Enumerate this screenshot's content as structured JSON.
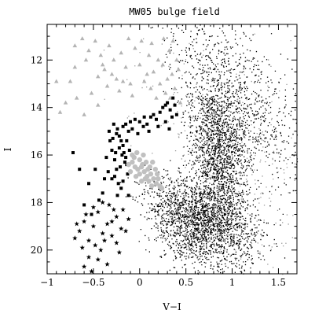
{
  "chart_data": {
    "type": "scatter",
    "title": "MW05 bulge field",
    "xlabel": "V−I",
    "ylabel": "I",
    "xlim": [
      -1.0,
      1.7
    ],
    "ylim": [
      21.0,
      10.5
    ],
    "y_inverted": true,
    "grid": false,
    "x_ticks": [
      {
        "value": -1,
        "label": "−1"
      },
      {
        "value": -0.5,
        "label": "−0.5"
      },
      {
        "value": 0,
        "label": "0"
      },
      {
        "value": 0.5,
        "label": "0.5"
      },
      {
        "value": 1,
        "label": "1"
      },
      {
        "value": 1.5,
        "label": "1.5"
      }
    ],
    "y_ticks": [
      {
        "value": 12,
        "label": "12"
      },
      {
        "value": 14,
        "label": "14"
      },
      {
        "value": 16,
        "label": "16"
      },
      {
        "value": 18,
        "label": "18"
      },
      {
        "value": 20,
        "label": "20"
      }
    ],
    "series": [
      {
        "marker": "triangle",
        "color": "#b4b4b4",
        "points": [
          [
            -0.62,
            11.1
          ],
          [
            -0.55,
            11.6
          ],
          [
            -0.48,
            11.2
          ],
          [
            -0.42,
            11.8
          ],
          [
            -0.38,
            12.4
          ],
          [
            -0.33,
            11.4
          ],
          [
            -0.28,
            12.0
          ],
          [
            -0.25,
            12.8
          ],
          [
            -0.2,
            11.7
          ],
          [
            -0.15,
            12.3
          ],
          [
            -0.1,
            13.0
          ],
          [
            -0.05,
            11.5
          ],
          [
            0.0,
            12.2
          ],
          [
            0.05,
            12.9
          ],
          [
            0.1,
            11.8
          ],
          [
            0.12,
            13.2
          ],
          [
            0.15,
            12.5
          ],
          [
            0.18,
            13.6
          ],
          [
            0.2,
            12.0
          ],
          [
            0.22,
            13.0
          ],
          [
            0.25,
            12.2
          ],
          [
            0.28,
            13.4
          ],
          [
            0.3,
            12.8
          ],
          [
            0.32,
            11.6
          ],
          [
            0.35,
            12.6
          ],
          [
            0.38,
            13.2
          ],
          [
            0.4,
            12.0
          ],
          [
            0.42,
            12.4
          ],
          [
            -0.7,
            12.3
          ],
          [
            -0.75,
            12.9
          ],
          [
            -0.68,
            13.6
          ],
          [
            -0.8,
            13.8
          ],
          [
            -0.86,
            14.2
          ],
          [
            -0.6,
            14.3
          ],
          [
            -0.52,
            13.4
          ],
          [
            -0.45,
            13.9
          ],
          [
            -0.35,
            13.1
          ],
          [
            -0.3,
            12.6
          ],
          [
            -0.4,
            12.2
          ],
          [
            -0.45,
            12.7
          ],
          [
            -0.9,
            12.9
          ],
          [
            -0.7,
            11.4
          ],
          [
            -0.58,
            12.0
          ],
          [
            -0.18,
            12.9
          ],
          [
            0.02,
            11.2
          ],
          [
            0.08,
            12.6
          ],
          [
            0.13,
            11.3
          ],
          [
            0.26,
            11.1
          ],
          [
            0.36,
            11.2
          ],
          [
            0.44,
            13.8
          ],
          [
            0.33,
            13.6
          ],
          [
            -0.08,
            13.5
          ],
          [
            -0.22,
            13.3
          ],
          [
            -0.12,
            11.1
          ]
        ]
      },
      {
        "marker": "square",
        "color": "#000000",
        "points": [
          [
            -0.28,
            14.7
          ],
          [
            -0.24,
            14.9
          ],
          [
            -0.22,
            15.2
          ],
          [
            -0.2,
            15.4
          ],
          [
            -0.18,
            15.6
          ],
          [
            -0.17,
            15.9
          ],
          [
            -0.15,
            16.1
          ],
          [
            -0.14,
            16.4
          ],
          [
            -0.13,
            16.8
          ],
          [
            -0.18,
            17.1
          ],
          [
            -0.2,
            17.4
          ],
          [
            -0.23,
            17.2
          ],
          [
            -0.25,
            16.6
          ],
          [
            -0.27,
            16.2
          ],
          [
            -0.3,
            15.8
          ],
          [
            -0.32,
            15.4
          ],
          [
            -0.25,
            15.1
          ],
          [
            -0.22,
            15.7
          ],
          [
            -0.19,
            16.0
          ],
          [
            -0.16,
            16.3
          ],
          [
            -0.21,
            16.5
          ],
          [
            -0.26,
            15.9
          ],
          [
            -0.29,
            15.3
          ],
          [
            -0.33,
            15.0
          ],
          [
            -0.15,
            14.7
          ],
          [
            -0.12,
            15.0
          ],
          [
            -0.1,
            14.6
          ],
          [
            -0.05,
            14.5
          ],
          [
            0.0,
            14.6
          ],
          [
            0.04,
            14.8
          ],
          [
            0.08,
            14.7
          ],
          [
            0.12,
            14.4
          ],
          [
            0.15,
            14.3
          ],
          [
            0.18,
            14.5
          ],
          [
            0.22,
            14.2
          ],
          [
            0.25,
            14.0
          ],
          [
            0.28,
            13.9
          ],
          [
            0.3,
            13.8
          ],
          [
            0.33,
            14.1
          ],
          [
            0.35,
            14.4
          ],
          [
            0.38,
            13.9
          ],
          [
            0.4,
            14.3
          ],
          [
            0.28,
            14.6
          ],
          [
            0.2,
            14.8
          ],
          [
            0.1,
            15.0
          ],
          [
            0.05,
            14.4
          ],
          [
            -0.02,
            15.1
          ],
          [
            -0.08,
            14.9
          ],
          [
            -0.36,
            16.1
          ],
          [
            -0.34,
            16.7
          ],
          [
            -0.38,
            17.0
          ],
          [
            -0.4,
            17.6
          ],
          [
            -0.44,
            17.9
          ],
          [
            -0.52,
            18.5
          ],
          [
            -0.6,
            18.1
          ],
          [
            -0.55,
            17.2
          ],
          [
            -0.72,
            15.9
          ],
          [
            -0.65,
            16.6
          ],
          [
            -0.48,
            16.6
          ],
          [
            -0.3,
            17.0
          ],
          [
            -0.12,
            17.7
          ],
          [
            -0.24,
            17.7
          ],
          [
            0.36,
            13.6
          ],
          [
            0.32,
            14.9
          ],
          [
            -0.14,
            15.4
          ],
          [
            -0.11,
            15.8
          ],
          [
            -0.18,
            14.8
          ],
          [
            -0.27,
            16.9
          ]
        ]
      },
      {
        "marker": "circle",
        "color": "#c0c0c0",
        "points": [
          [
            -0.08,
            16.3
          ],
          [
            -0.05,
            16.5
          ],
          [
            -0.02,
            16.6
          ],
          [
            0.02,
            16.5
          ],
          [
            0.05,
            16.7
          ],
          [
            0.08,
            16.9
          ],
          [
            0.12,
            16.8
          ],
          [
            0.15,
            17.0
          ],
          [
            0.18,
            17.2
          ],
          [
            0.2,
            17.0
          ],
          [
            0.22,
            17.3
          ],
          [
            0.24,
            17.4
          ],
          [
            0.1,
            17.1
          ],
          [
            0.06,
            17.0
          ],
          [
            0.0,
            16.8
          ],
          [
            -0.04,
            16.9
          ],
          [
            -0.06,
            16.1
          ],
          [
            -0.03,
            15.9
          ],
          [
            0.0,
            16.2
          ],
          [
            0.04,
            16.0
          ],
          [
            0.07,
            16.3
          ],
          [
            0.11,
            16.5
          ],
          [
            0.14,
            16.3
          ],
          [
            0.17,
            16.6
          ],
          [
            -0.1,
            16.7
          ],
          [
            -0.12,
            16.4
          ],
          [
            0.02,
            17.1
          ],
          [
            0.13,
            17.3
          ],
          [
            0.19,
            16.8
          ],
          [
            -0.08,
            16.0
          ],
          [
            0.03,
            16.4
          ],
          [
            0.09,
            16.6
          ]
        ]
      },
      {
        "marker": "star",
        "color": "#000000",
        "points": [
          [
            -0.65,
            19.2
          ],
          [
            -0.6,
            18.8
          ],
          [
            -0.55,
            19.6
          ],
          [
            -0.5,
            19.0
          ],
          [
            -0.45,
            18.4
          ],
          [
            -0.4,
            19.3
          ],
          [
            -0.35,
            18.9
          ],
          [
            -0.3,
            19.4
          ],
          [
            -0.25,
            18.6
          ],
          [
            -0.2,
            19.1
          ],
          [
            -0.62,
            19.9
          ],
          [
            -0.55,
            20.3
          ],
          [
            -0.48,
            19.8
          ],
          [
            -0.42,
            20.0
          ],
          [
            -0.38,
            19.6
          ],
          [
            -0.33,
            18.1
          ],
          [
            -0.28,
            18.3
          ],
          [
            -0.5,
            18.2
          ],
          [
            -0.58,
            18.5
          ],
          [
            -0.68,
            18.9
          ],
          [
            -0.7,
            19.5
          ],
          [
            -0.45,
            20.4
          ],
          [
            -0.35,
            20.6
          ],
          [
            -0.25,
            19.7
          ],
          [
            -0.15,
            19.2
          ],
          [
            -0.12,
            18.7
          ],
          [
            -0.6,
            20.7
          ],
          [
            -0.52,
            20.9
          ],
          [
            -0.4,
            18.0
          ],
          [
            -0.3,
            18.8
          ],
          [
            -0.18,
            18.3
          ],
          [
            -0.22,
            20.1
          ]
        ]
      }
    ],
    "density_regions": [
      {
        "color": "#000000",
        "density": 0.85,
        "x_center": 0.68,
        "y_center": 18.8,
        "x_spread": 0.28,
        "y_spread": 0.95,
        "slant": 0.35
      },
      {
        "color": "#000000",
        "density": 0.55,
        "x_center": 0.85,
        "y_center": 15.8,
        "x_spread": 0.15,
        "y_spread": 1.3,
        "slant": 0.12
      },
      {
        "color": "#000000",
        "density": 0.35,
        "x_center": 1.05,
        "y_center": 13.6,
        "x_spread": 0.28,
        "y_spread": 1.8,
        "slant": 0.4
      },
      {
        "color": "#9a9a9a",
        "density": 0.15,
        "x_center": 1.05,
        "y_center": 16.5,
        "x_spread": 0.45,
        "y_spread": 3.0,
        "slant": 0.3
      }
    ]
  }
}
